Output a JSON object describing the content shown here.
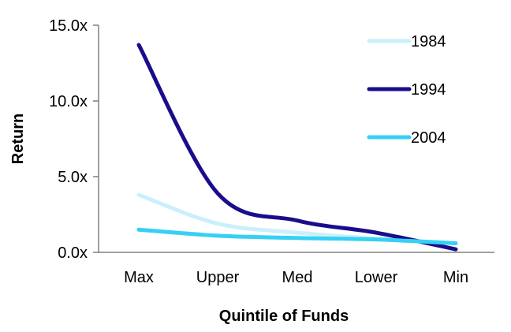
{
  "chart_data": {
    "type": "line",
    "title": "",
    "xlabel": "Quintile of Funds",
    "ylabel": "Return",
    "categories": [
      "Max",
      "Upper",
      "Med",
      "Lower",
      "Min"
    ],
    "y_tick_labels": [
      "0.0x",
      "5.0x",
      "10.0x",
      "15.0x"
    ],
    "y_ticks": [
      0,
      5,
      10,
      15
    ],
    "ylim": [
      0,
      15
    ],
    "grid": false,
    "legend_position": "top-right",
    "series": [
      {
        "name": "1984",
        "color": "#c9f0fb",
        "values": [
          3.8,
          1.9,
          1.3,
          0.9,
          0.6
        ]
      },
      {
        "name": "1994",
        "color": "#1a0d8c",
        "values": [
          13.7,
          3.9,
          2.1,
          1.3,
          0.2
        ]
      },
      {
        "name": "2004",
        "color": "#36d0f5",
        "values": [
          1.5,
          1.1,
          0.95,
          0.85,
          0.6
        ]
      }
    ]
  }
}
